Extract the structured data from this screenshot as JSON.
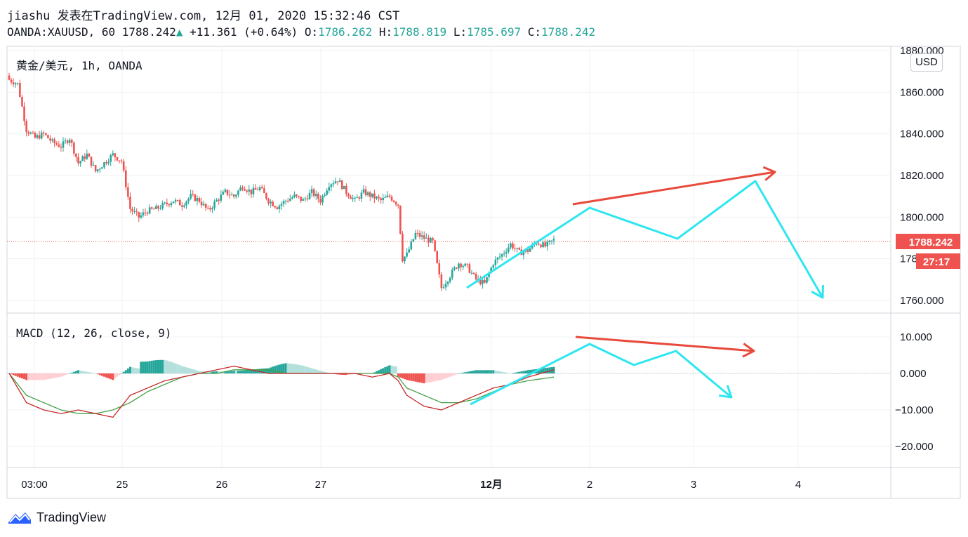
{
  "header": {
    "line1": "jiashu 发表在TradingView.com, 12月 01, 2020 15:32:46 CST",
    "symbol": "OANDA:XAUUSD, 60",
    "last": "1788.242",
    "change": "+11.361 (+0.64%)",
    "o_label": "O:",
    "o_value": "1786.262",
    "h_label": "H:",
    "h_value": "1788.819",
    "l_label": "L:",
    "l_value": "1785.697",
    "c_label": "C:",
    "c_value": "1788.242"
  },
  "price_pane": {
    "title": "黄金/美元, 1h, OANDA",
    "currency_badge": "USD",
    "price_label": "1788.242",
    "countdown_label": "27:17",
    "y_ticks": [
      "1880.000",
      "1860.000",
      "1840.000",
      "1820.000",
      "1800.000",
      "1780.000",
      "1760.000"
    ]
  },
  "macd_pane": {
    "title": "MACD (12, 26, close, 9)",
    "y_ticks": [
      "10.000",
      "0.000",
      "-10.000",
      "-20.000"
    ]
  },
  "x_ticks": [
    "03:00",
    "25",
    "26",
    "27",
    "12月",
    "2",
    "3",
    "4"
  ],
  "footer": {
    "brand": "TradingView"
  },
  "colors": {
    "up": "#26a69a",
    "down": "#ef5350",
    "macd": "#c62828",
    "signal": "#43a047",
    "hist_pos_strong": "#26a69a",
    "hist_pos_weak": "#b2dfdb",
    "hist_neg_strong": "#ef5350",
    "hist_neg_weak": "#ffcdd2",
    "projection_cyan": "#2ee6f0",
    "projection_red": "#e84a3c"
  },
  "chart_data": [
    {
      "type": "candlestick",
      "title": "黄金/美元, 1h, OANDA",
      "x_axis_ticks": [
        "03:00",
        "25",
        "26",
        "27",
        "12月",
        "2",
        "3",
        "4"
      ],
      "ylim": [
        1750,
        1882
      ],
      "y_ticks": [
        1760,
        1780,
        1800,
        1820,
        1840,
        1860,
        1880
      ],
      "current_price": 1788.242,
      "close_path": [
        [
          0,
          1866
        ],
        [
          4,
          1864
        ],
        [
          8,
          1842
        ],
        [
          12,
          1838
        ],
        [
          16,
          1840
        ],
        [
          20,
          1836
        ],
        [
          24,
          1834
        ],
        [
          28,
          1838
        ],
        [
          32,
          1826
        ],
        [
          36,
          1830
        ],
        [
          40,
          1822
        ],
        [
          44,
          1826
        ],
        [
          48,
          1830
        ],
        [
          52,
          1827
        ],
        [
          56,
          1804
        ],
        [
          60,
          1800
        ],
        [
          64,
          1803
        ],
        [
          68,
          1804
        ],
        [
          72,
          1806
        ],
        [
          76,
          1808
        ],
        [
          80,
          1806
        ],
        [
          84,
          1810
        ],
        [
          88,
          1808
        ],
        [
          92,
          1803
        ],
        [
          96,
          1808
        ],
        [
          100,
          1812
        ],
        [
          104,
          1810
        ],
        [
          108,
          1815
        ],
        [
          112,
          1812
        ],
        [
          116,
          1814
        ],
        [
          120,
          1808
        ],
        [
          124,
          1805
        ],
        [
          128,
          1808
        ],
        [
          132,
          1810
        ],
        [
          136,
          1808
        ],
        [
          140,
          1812
        ],
        [
          144,
          1808
        ],
        [
          148,
          1816
        ],
        [
          152,
          1818
        ],
        [
          156,
          1812
        ],
        [
          160,
          1808
        ],
        [
          164,
          1812
        ],
        [
          168,
          1810
        ],
        [
          172,
          1808
        ],
        [
          176,
          1810
        ],
        [
          180,
          1806
        ],
        [
          182,
          1780
        ],
        [
          184,
          1782
        ],
        [
          188,
          1792
        ],
        [
          192,
          1790
        ],
        [
          196,
          1788
        ],
        [
          200,
          1766
        ],
        [
          204,
          1772
        ],
        [
          208,
          1778
        ],
        [
          212,
          1776
        ],
        [
          216,
          1770
        ],
        [
          220,
          1768
        ],
        [
          224,
          1778
        ],
        [
          228,
          1782
        ],
        [
          232,
          1787
        ],
        [
          236,
          1783
        ],
        [
          240,
          1784
        ],
        [
          244,
          1788
        ],
        [
          248,
          1786
        ],
        [
          252,
          1789
        ]
      ],
      "bar_count": 253
    },
    {
      "type": "line",
      "title": "MACD (12, 26, close, 9)",
      "ylim": [
        -26,
        16
      ],
      "y_ticks": [
        10,
        0,
        -10,
        -20
      ],
      "series": [
        {
          "values_path": [
            [
              0,
              0
            ],
            [
              8,
              -8
            ],
            [
              16,
              -10
            ],
            [
              24,
              -11
            ],
            [
              32,
              -10
            ],
            [
              40,
              -11
            ],
            [
              48,
              -12
            ],
            [
              56,
              -6
            ],
            [
              64,
              -4
            ],
            [
              72,
              -2
            ],
            [
              80,
              -1
            ],
            [
              88,
              0
            ],
            [
              96,
              1
            ],
            [
              104,
              2
            ],
            [
              112,
              1
            ],
            [
              120,
              0
            ],
            [
              128,
              0
            ],
            [
              136,
              0
            ],
            [
              144,
              0
            ],
            [
              152,
              0
            ],
            [
              160,
              0
            ],
            [
              168,
              -1
            ],
            [
              176,
              0
            ],
            [
              180,
              -2
            ],
            [
              184,
              -6
            ],
            [
              192,
              -9
            ],
            [
              200,
              -10
            ],
            [
              208,
              -8
            ],
            [
              216,
              -6
            ],
            [
              224,
              -4
            ],
            [
              232,
              -3
            ],
            [
              240,
              -1
            ],
            [
              252,
              1
            ]
          ]
        },
        {
          "values_path": [
            [
              0,
              0
            ],
            [
              8,
              -6
            ],
            [
              16,
              -8
            ],
            [
              24,
              -10
            ],
            [
              32,
              -11
            ],
            [
              40,
              -11
            ],
            [
              48,
              -10
            ],
            [
              56,
              -8
            ],
            [
              64,
              -5
            ],
            [
              72,
              -3
            ],
            [
              80,
              -1
            ],
            [
              88,
              0
            ],
            [
              96,
              0
            ],
            [
              104,
              1
            ],
            [
              112,
              1
            ],
            [
              120,
              1
            ],
            [
              128,
              0
            ],
            [
              136,
              0
            ],
            [
              144,
              0
            ],
            [
              152,
              0
            ],
            [
              160,
              0
            ],
            [
              168,
              0
            ],
            [
              176,
              0
            ],
            [
              180,
              -1
            ],
            [
              184,
              -4
            ],
            [
              192,
              -6
            ],
            [
              200,
              -8
            ],
            [
              208,
              -8
            ],
            [
              216,
              -7
            ],
            [
              224,
              -5
            ],
            [
              232,
              -3
            ],
            [
              240,
              -2
            ],
            [
              252,
              -1
            ]
          ]
        }
      ]
    }
  ],
  "annotations": {
    "price_cyan_path": [
      [
        665,
        410
      ],
      [
        840,
        296
      ],
      [
        965,
        340
      ],
      [
        1076,
        258
      ],
      [
        1172,
        424
      ]
    ],
    "price_red_arrow": [
      [
        816,
        291
      ],
      [
        1104,
        245
      ]
    ],
    "macd_cyan_path": [
      [
        670,
        576
      ],
      [
        840,
        490
      ],
      [
        903,
        520
      ],
      [
        963,
        500
      ],
      [
        1042,
        566
      ]
    ],
    "macd_red_arrow": [
      [
        820,
        480
      ],
      [
        1074,
        500
      ]
    ]
  }
}
